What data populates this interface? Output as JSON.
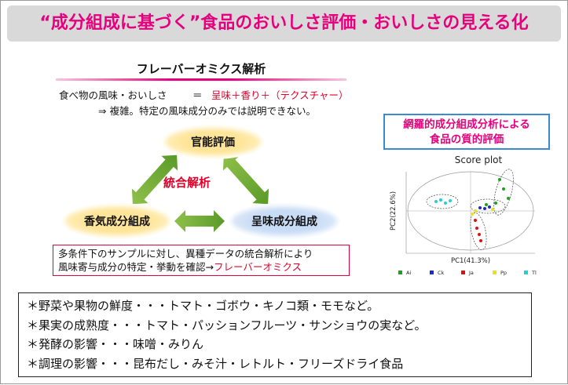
{
  "title": "“成分組成に基づく”食品のおいしさ評価・おいしさの見える化",
  "left": {
    "heading": "フレーバーオミクス解析",
    "formula_lhs": "食べ物の風味・おいしさ",
    "formula_eq": "＝",
    "formula_rhs": "呈味＋香り＋（テクスチャー）",
    "complex": "⇒ 複雑。特定の風味成分のみでは説明できない。",
    "sensory": "官能評価",
    "integrated": "統合解析",
    "aroma": "香気成分組成",
    "taste": "呈味成分組成",
    "multi_line1": "多条件下のサンプルに対し、異種データの統合解析により",
    "multi_line2_black": "風味寄与成分の特定・挙動を確認→",
    "multi_line2_red": "フレーバーオミクス"
  },
  "right": {
    "box_line1": "網羅的成分組成分析による",
    "box_line2": "食品の質的評価",
    "score_title": "Score plot",
    "xlabel": "PC1(41.3%)",
    "ylabel": "PC2(22.6%)",
    "legend": [
      {
        "label": "Ai",
        "color": "#1aa31a"
      },
      {
        "label": "Ck",
        "color": "#1a2ad0"
      },
      {
        "label": "Ja",
        "color": "#e01010"
      },
      {
        "label": "Pp",
        "color": "#e8e020"
      },
      {
        "label": "Tl",
        "color": "#20d0d8"
      }
    ]
  },
  "bullets": [
    "＊野菜や果物の鮮度・・・トマト・ゴボウ・キノコ類・モモなど。",
    "＊果実の成熟度・・・トマト・パッションフルーツ・サンショウの実など。",
    "＊発酵の影響・・・味噌・みりん",
    "＊調理の影響・・・昆布だし・みそ汁・レトルト・フリーズドライ食品"
  ]
}
